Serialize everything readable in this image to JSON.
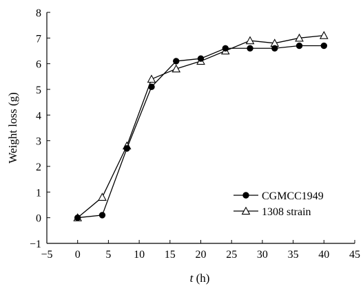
{
  "chart_data": {
    "type": "line",
    "xlabel": {
      "italic": "t",
      "unit": " (h)"
    },
    "ylabel": "Weight loss (g)",
    "xlim": [
      -5,
      45
    ],
    "ylim": [
      -1,
      8
    ],
    "xticks": [
      -5,
      0,
      5,
      10,
      15,
      20,
      25,
      30,
      35,
      40,
      45
    ],
    "yticks": [
      -1,
      0,
      1,
      2,
      3,
      4,
      5,
      6,
      7,
      8
    ],
    "grid": false,
    "legend_position": "bottom-right",
    "series": [
      {
        "name": "CGMCC1949",
        "marker": "filled-circle",
        "color": "#000000",
        "x": [
          0,
          4,
          8,
          12,
          16,
          20,
          24,
          28,
          32,
          36,
          40
        ],
        "y": [
          0.0,
          0.1,
          2.7,
          5.1,
          6.1,
          6.2,
          6.6,
          6.6,
          6.6,
          6.7,
          6.7
        ]
      },
      {
        "name": "1308 strain",
        "marker": "open-triangle",
        "color": "#000000",
        "x": [
          0,
          4,
          8,
          12,
          16,
          20,
          24,
          28,
          32,
          36,
          40
        ],
        "y": [
          0.0,
          0.8,
          2.8,
          5.4,
          5.8,
          6.1,
          6.5,
          6.9,
          6.8,
          7.0,
          7.1
        ]
      }
    ]
  }
}
